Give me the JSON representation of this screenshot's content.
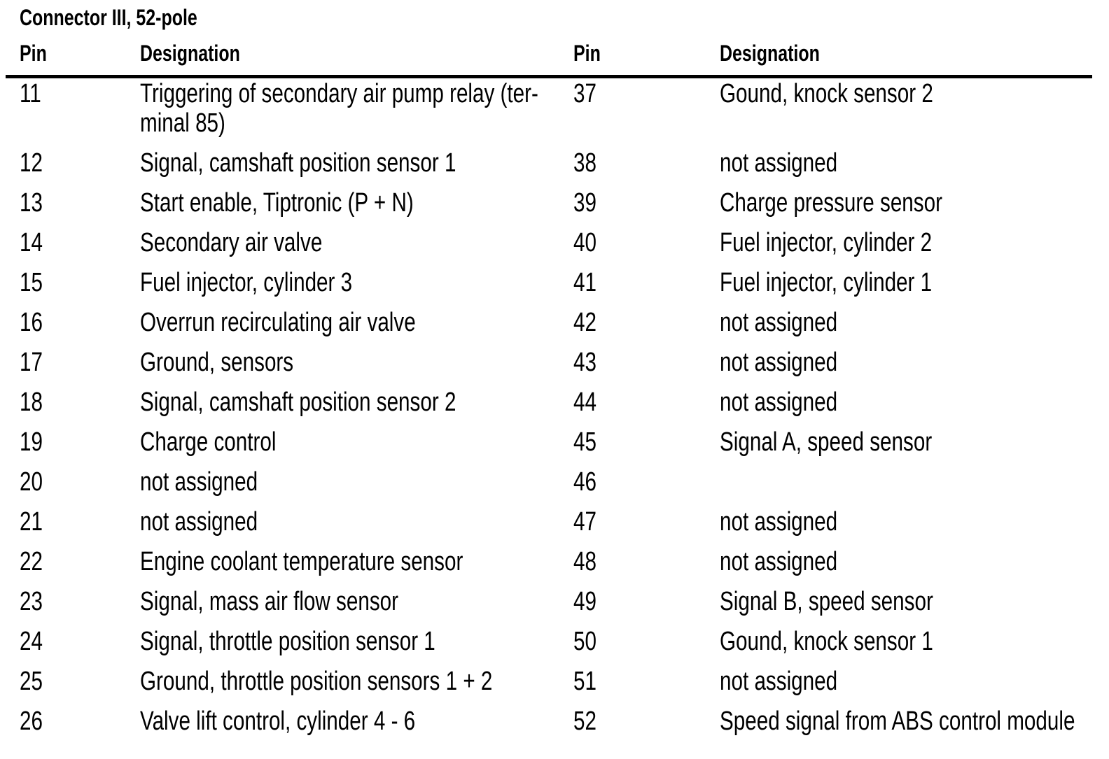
{
  "page": {
    "title": "Connector III, 52-pole",
    "text_color": "#000000",
    "background_color": "#ffffff"
  },
  "table": {
    "header": {
      "left": {
        "pin": "Pin",
        "designation": "Designation"
      },
      "right": {
        "pin": "Pin",
        "designation": "Designation"
      }
    },
    "left_rows": [
      {
        "pin": "11",
        "designation": "Triggering of secondary air pump relay (ter-\nminal 85)"
      },
      {
        "pin": "12",
        "designation": "Signal, camshaft position sensor 1"
      },
      {
        "pin": "13",
        "designation": "Start enable, Tiptronic (P + N)"
      },
      {
        "pin": "14",
        "designation": "Secondary air valve"
      },
      {
        "pin": "15",
        "designation": "Fuel injector, cylinder 3"
      },
      {
        "pin": "16",
        "designation": "Overrun recirculating air valve"
      },
      {
        "pin": "17",
        "designation": "Ground, sensors"
      },
      {
        "pin": "18",
        "designation": "Signal, camshaft position sensor 2"
      },
      {
        "pin": "19",
        "designation": "Charge control"
      },
      {
        "pin": "20",
        "designation": "not assigned"
      },
      {
        "pin": "21",
        "designation": "not assigned"
      },
      {
        "pin": "22",
        "designation": "Engine coolant temperature sensor"
      },
      {
        "pin": "23",
        "designation": "Signal, mass air flow sensor"
      },
      {
        "pin": "24",
        "designation": "Signal, throttle position sensor 1"
      },
      {
        "pin": "25",
        "designation": "Ground, throttle position sensors 1 + 2"
      },
      {
        "pin": "26",
        "designation": "Valve lift control, cylinder 4 - 6"
      }
    ],
    "right_rows": [
      {
        "pin": "37",
        "designation": "Gound, knock sensor 2"
      },
      {
        "pin": "38",
        "designation": "not assigned"
      },
      {
        "pin": "39",
        "designation": "Charge pressure sensor"
      },
      {
        "pin": "40",
        "designation": "Fuel injector, cylinder 2"
      },
      {
        "pin": "41",
        "designation": "Fuel injector, cylinder 1"
      },
      {
        "pin": "42",
        "designation": "not assigned"
      },
      {
        "pin": "43",
        "designation": "not assigned"
      },
      {
        "pin": "44",
        "designation": "not assigned"
      },
      {
        "pin": "45",
        "designation": "Signal A, speed sensor"
      },
      {
        "pin": "46",
        "designation": ""
      },
      {
        "pin": "47",
        "designation": "not assigned"
      },
      {
        "pin": "48",
        "designation": "not assigned"
      },
      {
        "pin": "49",
        "designation": "Signal B, speed sensor"
      },
      {
        "pin": "50",
        "designation": "Gound, knock sensor 1"
      },
      {
        "pin": "51",
        "designation": "not assigned"
      },
      {
        "pin": "52",
        "designation": "Speed signal from ABS control module"
      }
    ]
  }
}
